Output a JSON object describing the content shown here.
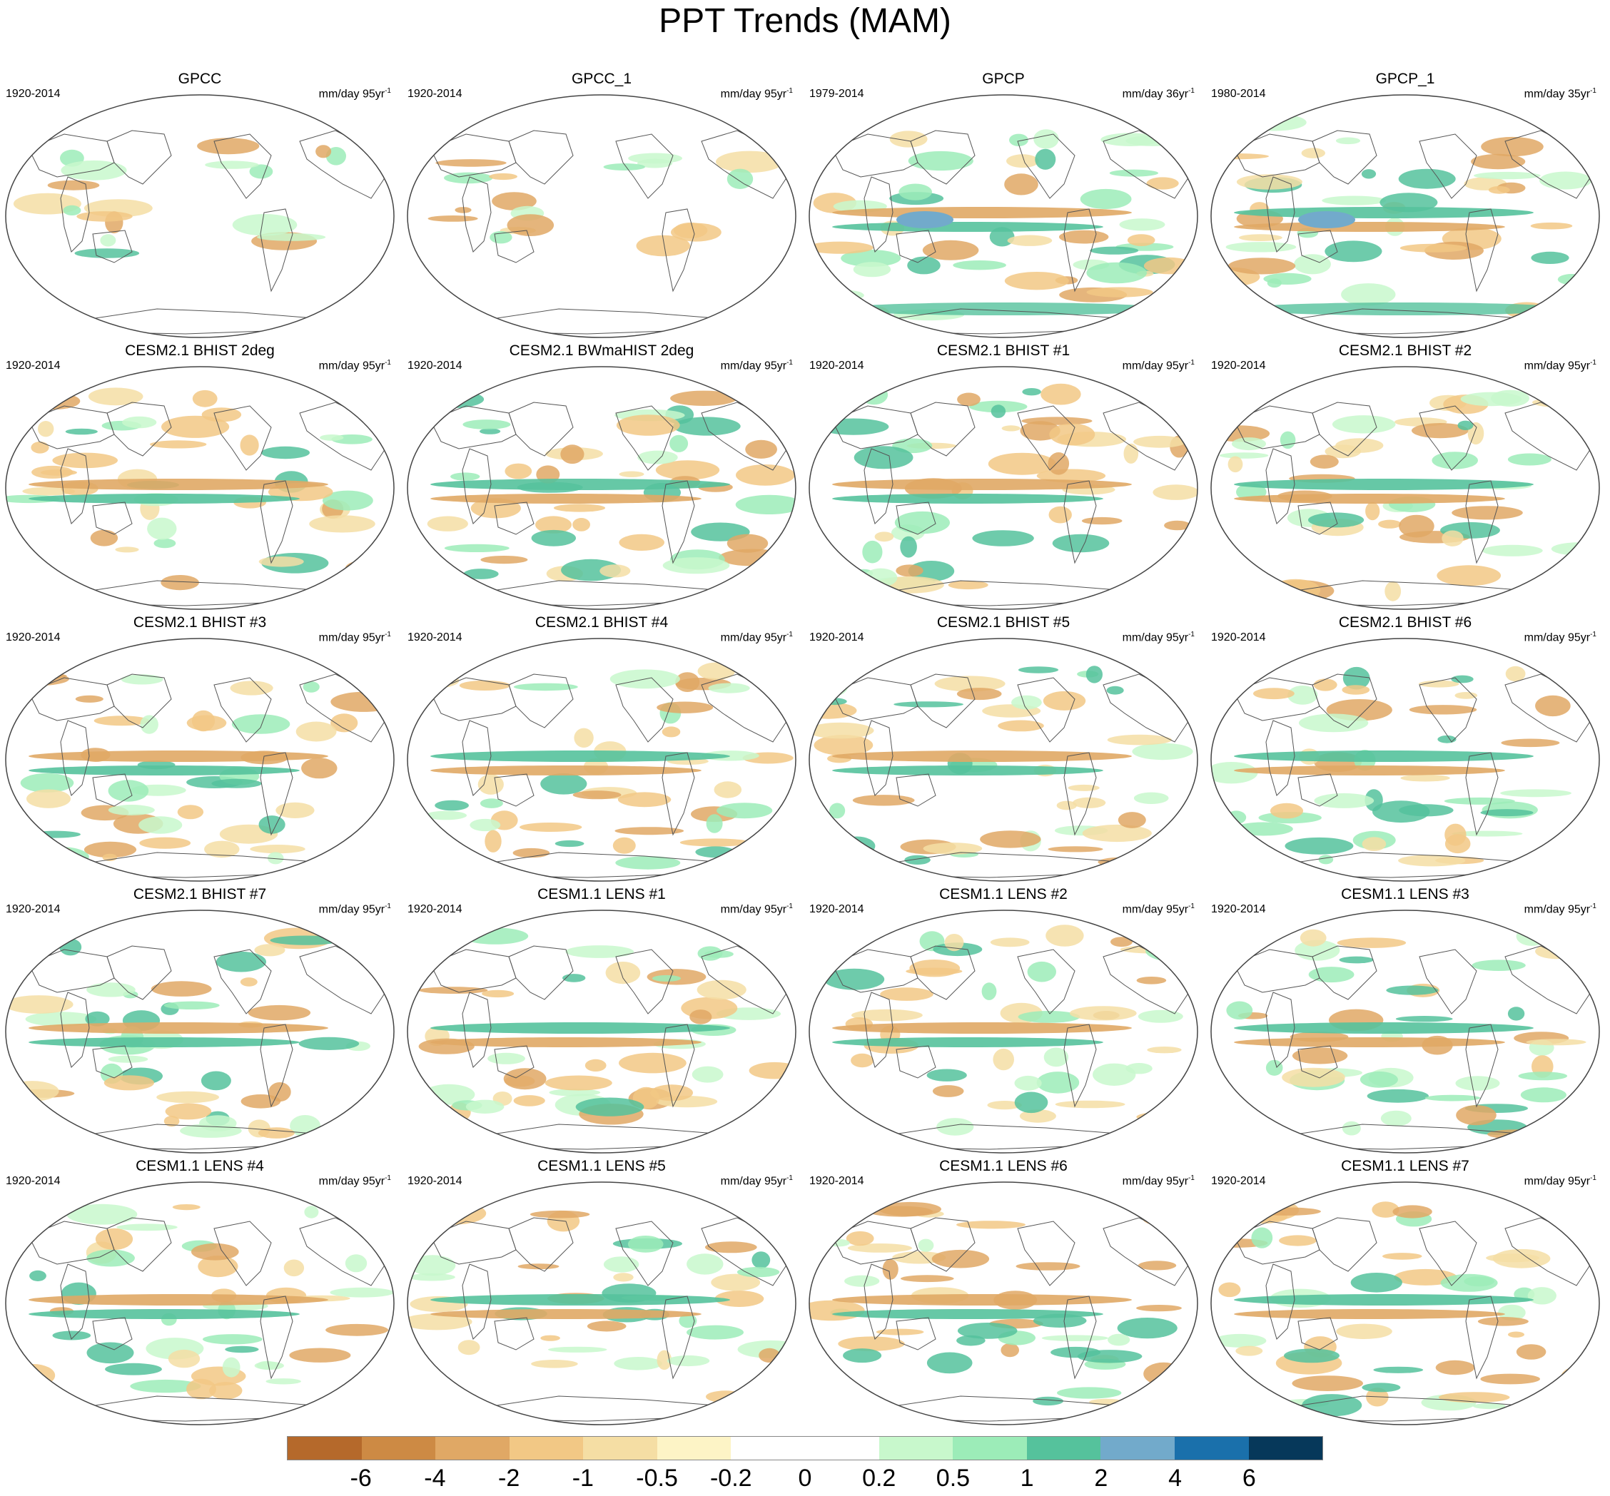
{
  "figure": {
    "title": "PPT Trends (MAM)"
  },
  "panels": [
    {
      "title": "GPCC",
      "period": "1920-2014",
      "units": "mm/day 95yr",
      "exp": "-1",
      "pattern": "obs_land"
    },
    {
      "title": "GPCC_1",
      "period": "1920-2014",
      "units": "mm/day 95yr",
      "exp": "-1",
      "pattern": "obs_land"
    },
    {
      "title": "GPCP",
      "period": "1979-2014",
      "units": "mm/day 36yr",
      "exp": "-1",
      "pattern": "obs_global"
    },
    {
      "title": "GPCP_1",
      "period": "1980-2014",
      "units": "mm/day 35yr",
      "exp": "-1",
      "pattern": "obs_global"
    },
    {
      "title": "CESM2.1 BHIST 2deg",
      "period": "1920-2014",
      "units": "mm/day 95yr",
      "exp": "-1",
      "pattern": "model"
    },
    {
      "title": "CESM2.1 BWmaHIST 2deg",
      "period": "1920-2014",
      "units": "mm/day 95yr",
      "exp": "-1",
      "pattern": "model"
    },
    {
      "title": "CESM2.1 BHIST #1",
      "period": "1920-2014",
      "units": "mm/day 95yr",
      "exp": "-1",
      "pattern": "model"
    },
    {
      "title": "CESM2.1 BHIST #2",
      "period": "1920-2014",
      "units": "mm/day 95yr",
      "exp": "-1",
      "pattern": "model"
    },
    {
      "title": "CESM2.1 BHIST #3",
      "period": "1920-2014",
      "units": "mm/day 95yr",
      "exp": "-1",
      "pattern": "model"
    },
    {
      "title": "CESM2.1 BHIST #4",
      "period": "1920-2014",
      "units": "mm/day 95yr",
      "exp": "-1",
      "pattern": "model"
    },
    {
      "title": "CESM2.1 BHIST #5",
      "period": "1920-2014",
      "units": "mm/day 95yr",
      "exp": "-1",
      "pattern": "model"
    },
    {
      "title": "CESM2.1 BHIST #6",
      "period": "1920-2014",
      "units": "mm/day 95yr",
      "exp": "-1",
      "pattern": "model"
    },
    {
      "title": "CESM2.1 BHIST #7",
      "period": "1920-2014",
      "units": "mm/day 95yr",
      "exp": "-1",
      "pattern": "model"
    },
    {
      "title": "CESM1.1 LENS #1",
      "period": "1920-2014",
      "units": "mm/day 95yr",
      "exp": "-1",
      "pattern": "model"
    },
    {
      "title": "CESM1.1 LENS #2",
      "period": "1920-2014",
      "units": "mm/day 95yr",
      "exp": "-1",
      "pattern": "model"
    },
    {
      "title": "CESM1.1 LENS #3",
      "period": "1920-2014",
      "units": "mm/day 95yr",
      "exp": "-1",
      "pattern": "model"
    },
    {
      "title": "CESM1.1 LENS #4",
      "period": "1920-2014",
      "units": "mm/day 95yr",
      "exp": "-1",
      "pattern": "model"
    },
    {
      "title": "CESM1.1 LENS #5",
      "period": "1920-2014",
      "units": "mm/day 95yr",
      "exp": "-1",
      "pattern": "model"
    },
    {
      "title": "CESM1.1 LENS #6",
      "period": "1920-2014",
      "units": "mm/day 95yr",
      "exp": "-1",
      "pattern": "model"
    },
    {
      "title": "CESM1.1 LENS #7",
      "period": "1920-2014",
      "units": "mm/day 95yr",
      "exp": "-1",
      "pattern": "model"
    }
  ],
  "colorbar": {
    "colors": [
      "#b5692b",
      "#cd8a44",
      "#e0a865",
      "#f2c885",
      "#f5dea4",
      "#fdf4c6",
      "#ffffff",
      "#ffffff",
      "#c8f8cc",
      "#9cecb8",
      "#55c29c",
      "#72aacb",
      "#1a70ab",
      "#06385a"
    ],
    "labels": [
      "-6",
      "-4",
      "-2",
      "-1",
      "-0.5",
      "-0.2",
      "0",
      "0.2",
      "0.5",
      "1",
      "2",
      "4",
      "6"
    ]
  }
}
